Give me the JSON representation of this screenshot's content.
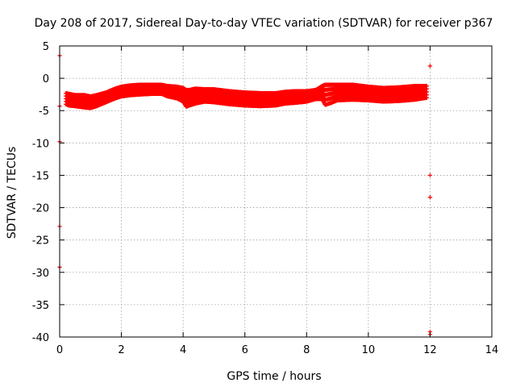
{
  "chart_data": {
    "type": "scatter",
    "title": "Day 208 of 2017, Sidereal Day-to-day VTEC variation (SDTVAR) for receiver p367",
    "xlabel": "GPS time / hours",
    "ylabel": "SDTVAR / TECUs",
    "xlim": [
      0,
      14
    ],
    "ylim": [
      -40,
      5
    ],
    "xticks": [
      0,
      2,
      4,
      6,
      8,
      10,
      12,
      14
    ],
    "yticks": [
      5,
      0,
      -5,
      -10,
      -15,
      -20,
      -25,
      -30,
      -35,
      -40
    ],
    "grid": true,
    "marker": "plus",
    "marker_color": "#ff0000",
    "band": {
      "x": [
        0.2,
        0.3,
        0.5,
        0.8,
        1.0,
        1.2,
        1.5,
        1.8,
        2.0,
        2.3,
        2.6,
        3.0,
        3.3,
        3.5,
        3.8,
        4.0,
        4.1,
        4.2,
        4.4,
        4.7,
        5.0,
        5.5,
        6.0,
        6.5,
        7.0,
        7.3,
        7.6,
        8.0,
        8.3,
        8.5,
        8.6,
        8.8,
        9.0,
        9.5,
        10.0,
        10.5,
        11.0,
        11.5,
        11.9
      ],
      "upper": [
        -2.3,
        -2.4,
        -2.6,
        -2.6,
        -2.8,
        -2.6,
        -2.2,
        -1.6,
        -1.3,
        -1.1,
        -1.0,
        -1.0,
        -1.0,
        -1.2,
        -1.3,
        -1.5,
        -1.8,
        -1.8,
        -1.6,
        -1.7,
        -1.7,
        -2.0,
        -2.2,
        -2.3,
        -2.3,
        -2.1,
        -2.0,
        -2.0,
        -1.8,
        -1.2,
        -1.0,
        -1.0,
        -1.0,
        -1.0,
        -1.3,
        -1.5,
        -1.4,
        -1.2,
        -1.2
      ],
      "lower": [
        -4.0,
        -4.2,
        -4.3,
        -4.5,
        -4.6,
        -4.3,
        -3.7,
        -3.1,
        -2.8,
        -2.6,
        -2.5,
        -2.4,
        -2.4,
        -2.8,
        -3.1,
        -3.6,
        -4.4,
        -4.2,
        -3.9,
        -3.6,
        -3.7,
        -4.0,
        -4.2,
        -4.3,
        -4.2,
        -3.9,
        -3.8,
        -3.6,
        -3.2,
        -3.2,
        -4.1,
        -3.8,
        -3.4,
        -3.3,
        -3.4,
        -3.6,
        -3.5,
        -3.3,
        -3.0
      ]
    },
    "outliers": [
      {
        "x": 0.0,
        "y": 3.5
      },
      {
        "x": 0.0,
        "y": -4.3
      },
      {
        "x": 0.0,
        "y": -9.8
      },
      {
        "x": 0.0,
        "y": -22.9
      },
      {
        "x": 0.0,
        "y": -29.2
      },
      {
        "x": 12.0,
        "y": 1.9
      },
      {
        "x": 12.0,
        "y": -15.0
      },
      {
        "x": 12.0,
        "y": -18.4
      },
      {
        "x": 12.0,
        "y": -39.2
      },
      {
        "x": 12.0,
        "y": -39.6
      }
    ]
  }
}
